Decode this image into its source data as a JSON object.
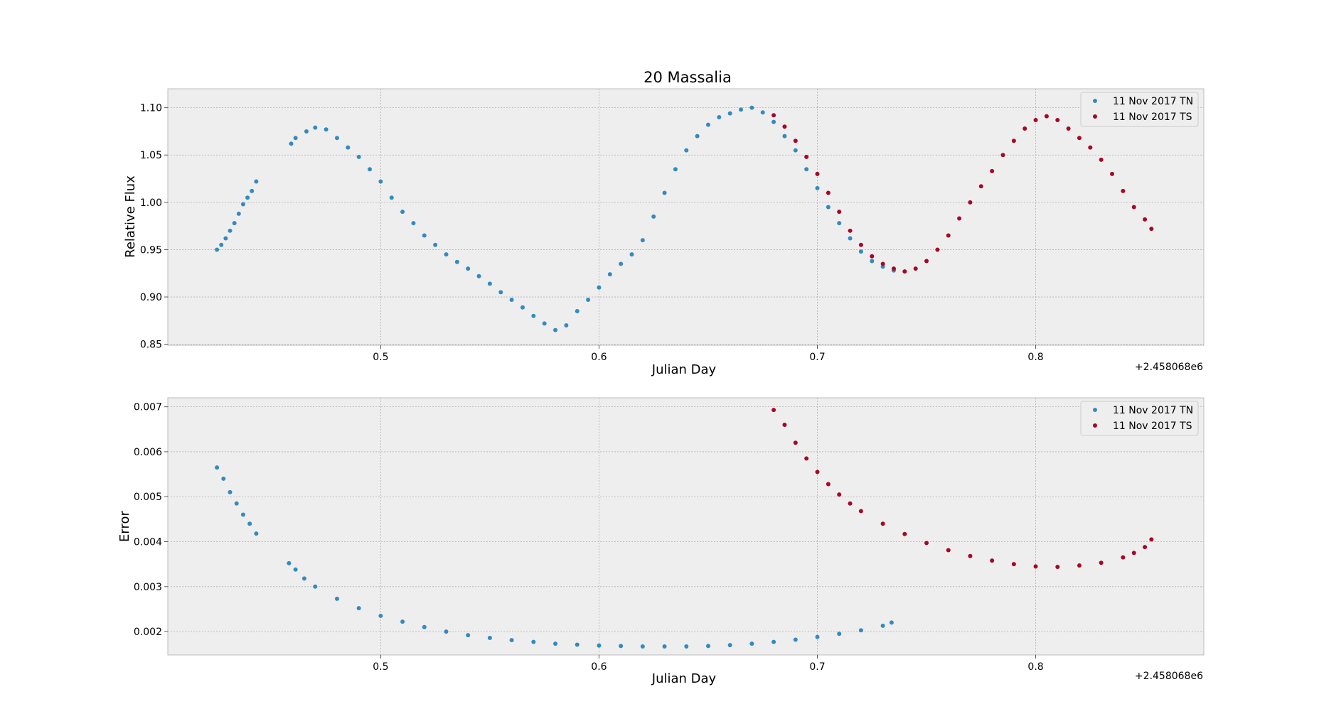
{
  "colors": {
    "tn": "#348abd",
    "ts": "#a60628",
    "grid": "#b0b0b0",
    "face": "#eeeeee",
    "frame": "#bcbcbc"
  },
  "chart_data": [
    {
      "type": "scatter",
      "title": "20 Massalia",
      "xlabel": "Julian Day",
      "ylabel": "Relative Flux",
      "x_offset_label": "+2.458068e6",
      "xlim": [
        0.4025,
        0.877
      ],
      "ylim": [
        0.849,
        1.12
      ],
      "xticks": [
        0.5,
        0.6,
        0.7,
        0.8
      ],
      "xtick_labels": [
        "0.5",
        "0.6",
        "0.7",
        "0.8"
      ],
      "yticks": [
        0.85,
        0.9,
        0.95,
        1.0,
        1.05,
        1.1
      ],
      "ytick_labels": [
        "0.85",
        "0.90",
        "0.95",
        "1.00",
        "1.05",
        "1.10"
      ],
      "grid": true,
      "legend_position": "top-right",
      "series": [
        {
          "name": "11 Nov 2017 TN",
          "color": "#348abd",
          "x": [
            0.425,
            0.427,
            0.429,
            0.431,
            0.433,
            0.435,
            0.437,
            0.439,
            0.441,
            0.443,
            0.459,
            0.461,
            0.466,
            0.47,
            0.475,
            0.48,
            0.485,
            0.49,
            0.495,
            0.5,
            0.505,
            0.51,
            0.515,
            0.52,
            0.525,
            0.53,
            0.535,
            0.54,
            0.545,
            0.55,
            0.555,
            0.56,
            0.565,
            0.57,
            0.575,
            0.58,
            0.585,
            0.59,
            0.595,
            0.6,
            0.605,
            0.61,
            0.615,
            0.62,
            0.625,
            0.63,
            0.635,
            0.64,
            0.645,
            0.65,
            0.655,
            0.66,
            0.665,
            0.67,
            0.675,
            0.68,
            0.685,
            0.69,
            0.695,
            0.7,
            0.705,
            0.71,
            0.715,
            0.72,
            0.725,
            0.73,
            0.735
          ],
          "y": [
            0.95,
            0.955,
            0.962,
            0.97,
            0.978,
            0.988,
            0.998,
            1.005,
            1.012,
            1.022,
            1.062,
            1.068,
            1.075,
            1.079,
            1.077,
            1.068,
            1.058,
            1.048,
            1.035,
            1.022,
            1.005,
            0.99,
            0.978,
            0.965,
            0.955,
            0.945,
            0.937,
            0.93,
            0.922,
            0.914,
            0.905,
            0.897,
            0.889,
            0.88,
            0.872,
            0.865,
            0.87,
            0.885,
            0.897,
            0.91,
            0.924,
            0.935,
            0.945,
            0.96,
            0.985,
            1.01,
            1.035,
            1.055,
            1.07,
            1.082,
            1.09,
            1.094,
            1.098,
            1.1,
            1.095,
            1.085,
            1.07,
            1.055,
            1.035,
            1.015,
            0.995,
            0.978,
            0.962,
            0.948,
            0.938,
            0.932,
            0.928
          ]
        },
        {
          "name": "11 Nov 2017 TS",
          "color": "#a60628",
          "x": [
            0.68,
            0.685,
            0.69,
            0.695,
            0.7,
            0.705,
            0.71,
            0.715,
            0.72,
            0.725,
            0.73,
            0.735,
            0.74,
            0.745,
            0.75,
            0.755,
            0.76,
            0.765,
            0.77,
            0.775,
            0.78,
            0.785,
            0.79,
            0.795,
            0.8,
            0.805,
            0.81,
            0.815,
            0.82,
            0.825,
            0.83,
            0.835,
            0.84,
            0.845,
            0.85,
            0.853
          ],
          "y": [
            1.092,
            1.08,
            1.065,
            1.048,
            1.03,
            1.01,
            0.99,
            0.97,
            0.955,
            0.943,
            0.935,
            0.93,
            0.927,
            0.93,
            0.938,
            0.95,
            0.965,
            0.983,
            1.0,
            1.017,
            1.033,
            1.05,
            1.065,
            1.078,
            1.087,
            1.091,
            1.087,
            1.078,
            1.068,
            1.058,
            1.045,
            1.03,
            1.012,
            0.995,
            0.982,
            0.972
          ]
        }
      ]
    },
    {
      "type": "scatter",
      "title": "",
      "xlabel": "Julian Day",
      "ylabel": "Error",
      "x_offset_label": "+2.458068e6",
      "xlim": [
        0.4025,
        0.877
      ],
      "ylim": [
        0.00148,
        0.0072
      ],
      "xticks": [
        0.5,
        0.6,
        0.7,
        0.8
      ],
      "xtick_labels": [
        "0.5",
        "0.6",
        "0.7",
        "0.8"
      ],
      "yticks": [
        0.002,
        0.003,
        0.004,
        0.005,
        0.006,
        0.007
      ],
      "ytick_labels": [
        "0.002",
        "0.003",
        "0.004",
        "0.005",
        "0.006",
        "0.007"
      ],
      "grid": true,
      "legend_position": "top-right",
      "series": [
        {
          "name": "11 Nov 2017 TN",
          "color": "#348abd",
          "x": [
            0.425,
            0.428,
            0.431,
            0.434,
            0.437,
            0.44,
            0.443,
            0.458,
            0.461,
            0.465,
            0.47,
            0.48,
            0.49,
            0.5,
            0.51,
            0.52,
            0.53,
            0.54,
            0.55,
            0.56,
            0.57,
            0.58,
            0.59,
            0.6,
            0.61,
            0.62,
            0.63,
            0.64,
            0.65,
            0.66,
            0.67,
            0.68,
            0.69,
            0.7,
            0.71,
            0.72,
            0.73,
            0.734
          ],
          "y": [
            0.00565,
            0.0054,
            0.0051,
            0.00485,
            0.0046,
            0.0044,
            0.00418,
            0.00352,
            0.00338,
            0.00318,
            0.003,
            0.00273,
            0.00252,
            0.00235,
            0.00222,
            0.0021,
            0.002,
            0.00192,
            0.00186,
            0.00181,
            0.00177,
            0.00173,
            0.00171,
            0.00169,
            0.00168,
            0.00167,
            0.00167,
            0.00167,
            0.00168,
            0.0017,
            0.00173,
            0.00177,
            0.00182,
            0.00188,
            0.00195,
            0.00203,
            0.00213,
            0.0022
          ]
        },
        {
          "name": "11 Nov 2017 TS",
          "color": "#a60628",
          "x": [
            0.68,
            0.685,
            0.69,
            0.695,
            0.7,
            0.705,
            0.71,
            0.715,
            0.72,
            0.73,
            0.74,
            0.75,
            0.76,
            0.77,
            0.78,
            0.79,
            0.8,
            0.81,
            0.82,
            0.83,
            0.84,
            0.845,
            0.85,
            0.853
          ],
          "y": [
            0.00693,
            0.0066,
            0.0062,
            0.00585,
            0.00555,
            0.00528,
            0.00505,
            0.00485,
            0.00468,
            0.0044,
            0.00417,
            0.00397,
            0.00381,
            0.00368,
            0.00358,
            0.0035,
            0.00345,
            0.00344,
            0.00347,
            0.00353,
            0.00365,
            0.00375,
            0.00388,
            0.00405
          ]
        }
      ]
    }
  ]
}
